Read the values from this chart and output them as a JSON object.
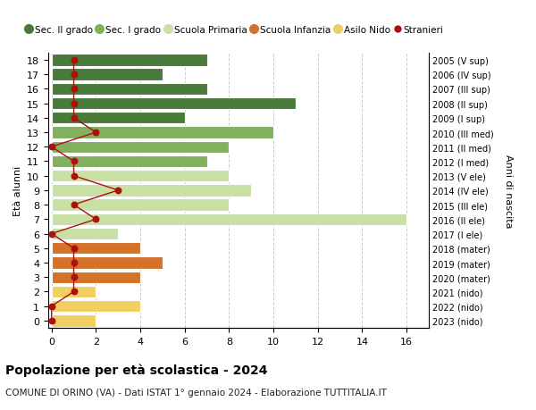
{
  "ages": [
    18,
    17,
    16,
    15,
    14,
    13,
    12,
    11,
    10,
    9,
    8,
    7,
    6,
    5,
    4,
    3,
    2,
    1,
    0
  ],
  "years": [
    "2005 (V sup)",
    "2006 (IV sup)",
    "2007 (III sup)",
    "2008 (II sup)",
    "2009 (I sup)",
    "2010 (III med)",
    "2011 (II med)",
    "2012 (I med)",
    "2013 (V ele)",
    "2014 (IV ele)",
    "2015 (III ele)",
    "2016 (II ele)",
    "2017 (I ele)",
    "2018 (mater)",
    "2019 (mater)",
    "2020 (mater)",
    "2021 (nido)",
    "2022 (nido)",
    "2023 (nido)"
  ],
  "bar_values": [
    7,
    5,
    7,
    11,
    6,
    10,
    8,
    7,
    8,
    9,
    8,
    16,
    3,
    4,
    5,
    4,
    2,
    4,
    2
  ],
  "bar_colors": [
    "#4a7a3a",
    "#4a7a3a",
    "#4a7a3a",
    "#4a7a3a",
    "#4a7a3a",
    "#82b060",
    "#82b060",
    "#82b060",
    "#c8e0a5",
    "#c8e0a5",
    "#c8e0a5",
    "#c8e0a5",
    "#c8e0a5",
    "#d4722a",
    "#d4722a",
    "#d4722a",
    "#f0ce60",
    "#f0ce60",
    "#f0ce60"
  ],
  "stranieri_values": [
    1,
    1,
    1,
    1,
    1,
    2,
    0,
    1,
    1,
    3,
    1,
    2,
    0,
    1,
    1,
    1,
    1,
    0,
    0
  ],
  "stranieri_color": "#aa1111",
  "legend_labels": [
    "Sec. II grado",
    "Sec. I grado",
    "Scuola Primaria",
    "Scuola Infanzia",
    "Asilo Nido",
    "Stranieri"
  ],
  "legend_colors": [
    "#4a7a3a",
    "#82b060",
    "#c8e0a5",
    "#d4722a",
    "#f0ce60",
    "#aa1111"
  ],
  "xlabel_values": [
    0,
    2,
    4,
    6,
    8,
    10,
    12,
    14,
    16
  ],
  "xlim": [
    0,
    17
  ],
  "ylim": [
    -0.5,
    18.5
  ],
  "ylabel": "Età alunni",
  "right_ylabel": "Anni di nascita",
  "title": "Popolazione per età scolastica - 2024",
  "subtitle": "COMUNE DI ORINO (VA) - Dati ISTAT 1° gennaio 2024 - Elaborazione TUTTITALIA.IT",
  "bg_color": "#ffffff",
  "grid_color": "#cccccc"
}
